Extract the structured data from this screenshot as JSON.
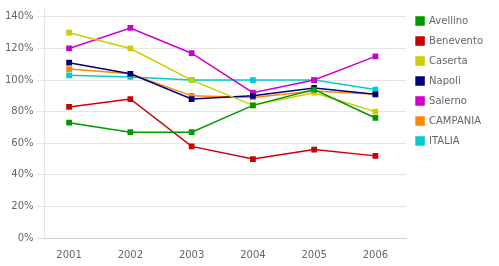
{
  "chart_data": {
    "type": "line",
    "x": [
      2001,
      2002,
      2003,
      2004,
      2005,
      2006
    ],
    "series": [
      {
        "name": "Avellino",
        "color": "#009900",
        "marker": "square",
        "line_style": "solid",
        "values": [
          0.73,
          0.67,
          0.67,
          0.84,
          0.94,
          0.76
        ]
      },
      {
        "name": "Benevento",
        "color": "#cc0000",
        "marker": "square",
        "line_style": "solid",
        "values": [
          0.83,
          0.88,
          0.58,
          0.5,
          0.56,
          0.52
        ]
      },
      {
        "name": "Caserta",
        "color": "#cccc00",
        "marker": "square",
        "line_style": "solid",
        "values": [
          1.3,
          1.2,
          1.0,
          0.84,
          0.92,
          0.8
        ]
      },
      {
        "name": "Napoli",
        "color": "#000080",
        "marker": "square",
        "line_style": "solid",
        "values": [
          1.11,
          1.04,
          0.88,
          0.9,
          0.95,
          0.91
        ]
      },
      {
        "name": "Salerno",
        "color": "#cc00cc",
        "marker": "square",
        "line_style": "solid",
        "values": [
          1.2,
          1.33,
          1.17,
          0.92,
          1.0,
          1.15
        ]
      },
      {
        "name": "CAMPANIA",
        "color": "#ff8800",
        "marker": "square",
        "line_style": "solid",
        "values": [
          1.07,
          1.04,
          0.9,
          0.89,
          0.93,
          0.91
        ]
      },
      {
        "name": "ITALIA",
        "color": "#00cccc",
        "marker": "square",
        "line_style": "solid",
        "values": [
          1.03,
          1.02,
          1.0,
          1.0,
          1.0,
          0.94
        ]
      }
    ],
    "xlim": [
      2000.6,
      2006.5
    ],
    "xticks": [
      2001,
      2002,
      2003,
      2004,
      2005,
      2006
    ],
    "ylim": [
      0.0,
      1.45
    ],
    "yticks": [
      {
        "value": 0.0,
        "label": "0%"
      },
      {
        "value": 0.2,
        "label": "20%"
      },
      {
        "value": 0.4,
        "label": "40%"
      },
      {
        "value": 0.6,
        "label": "60%"
      },
      {
        "value": 0.8,
        "label": "80%"
      },
      {
        "value": 1.0,
        "label": "100%"
      },
      {
        "value": 1.2,
        "label": "120%"
      },
      {
        "value": 1.4,
        "label": "140%"
      }
    ],
    "grid": "y",
    "legend": "right"
  }
}
